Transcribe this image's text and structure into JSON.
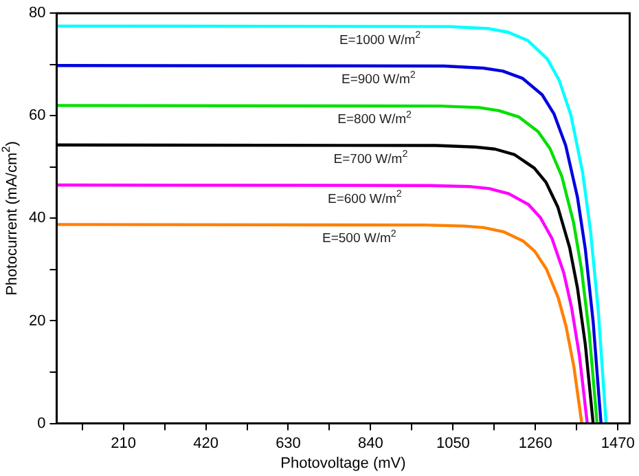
{
  "chart_data": {
    "type": "line",
    "xlabel": "Photovoltage (mV)",
    "ylabel": "Photocurrent (mA/cm$^{2}$)",
    "xlim": [
      40,
      1500
    ],
    "xticks": [
      {
        "value": 105,
        "label": null
      },
      210,
      {
        "value": 315,
        "label": null
      },
      420,
      {
        "value": 525,
        "label": null
      },
      630,
      {
        "value": 735,
        "label": null
      },
      840,
      {
        "value": 945,
        "label": null
      },
      1050,
      {
        "value": 1155,
        "label": null
      },
      1260,
      {
        "value": 1365,
        "label": null
      },
      1470
    ],
    "ylim": [
      0,
      80
    ],
    "yticks": [
      0,
      {
        "value": 10,
        "label": null
      },
      20,
      {
        "value": 30,
        "label": null
      },
      40,
      {
        "value": 50,
        "label": null
      },
      60,
      {
        "value": 70,
        "label": null
      },
      80
    ],
    "grid": false,
    "legend": false,
    "marker": "none",
    "line_style": "solid",
    "series": [
      {
        "name": "E=1000 W/m$^{2}$",
        "color": "#00ffff",
        "x": [
          40,
          1040,
          1140,
          1190,
          1240,
          1290,
          1320,
          1350,
          1380,
          1400,
          1420,
          1440
        ],
        "values": [
          77.5,
          77.4,
          77.0,
          76.3,
          74.7,
          71.1,
          67.0,
          60.2,
          49.0,
          37.7,
          22.0,
          0
        ]
      },
      {
        "name": "E=900 W/m$^{2}$",
        "color": "#0000e0",
        "x": [
          40,
          1027,
          1127,
          1177,
          1227,
          1277,
          1307,
          1337,
          1367,
          1387,
          1407,
          1427
        ],
        "values": [
          69.8,
          69.7,
          69.3,
          68.7,
          67.3,
          64.1,
          60.4,
          54.2,
          44.1,
          34.0,
          19.8,
          0
        ]
      },
      {
        "name": "E=800 W/m$^{2}$",
        "color": "#00e000",
        "x": [
          40,
          1017,
          1117,
          1167,
          1217,
          1267,
          1297,
          1327,
          1357,
          1377,
          1397,
          1417
        ],
        "values": [
          62.0,
          61.9,
          61.6,
          61.0,
          59.8,
          56.9,
          53.6,
          48.2,
          39.2,
          30.2,
          17.6,
          0
        ]
      },
      {
        "name": "E=700 W/m$^{2}$",
        "color": "#000000",
        "x": [
          40,
          1007,
          1107,
          1157,
          1207,
          1257,
          1287,
          1317,
          1347,
          1367,
          1387,
          1407
        ],
        "values": [
          54.3,
          54.2,
          53.9,
          53.5,
          52.4,
          49.8,
          47.0,
          42.2,
          34.3,
          26.4,
          15.4,
          0
        ]
      },
      {
        "name": "E=600 W/m$^{2}$",
        "color": "#ff00ff",
        "x": [
          40,
          992,
          1092,
          1142,
          1192,
          1242,
          1272,
          1302,
          1332,
          1352,
          1372,
          1392
        ],
        "values": [
          46.5,
          46.4,
          46.2,
          45.8,
          44.8,
          42.7,
          40.2,
          36.1,
          29.4,
          22.6,
          13.2,
          0
        ]
      },
      {
        "name": "E=500 W/m$^{2}$",
        "color": "#ff8000",
        "x": [
          40,
          978,
          1078,
          1128,
          1178,
          1228,
          1258,
          1288,
          1318,
          1338,
          1358,
          1378
        ],
        "values": [
          38.8,
          38.7,
          38.5,
          38.2,
          37.4,
          35.6,
          33.6,
          30.1,
          24.5,
          18.9,
          11.0,
          0
        ]
      }
    ]
  }
}
